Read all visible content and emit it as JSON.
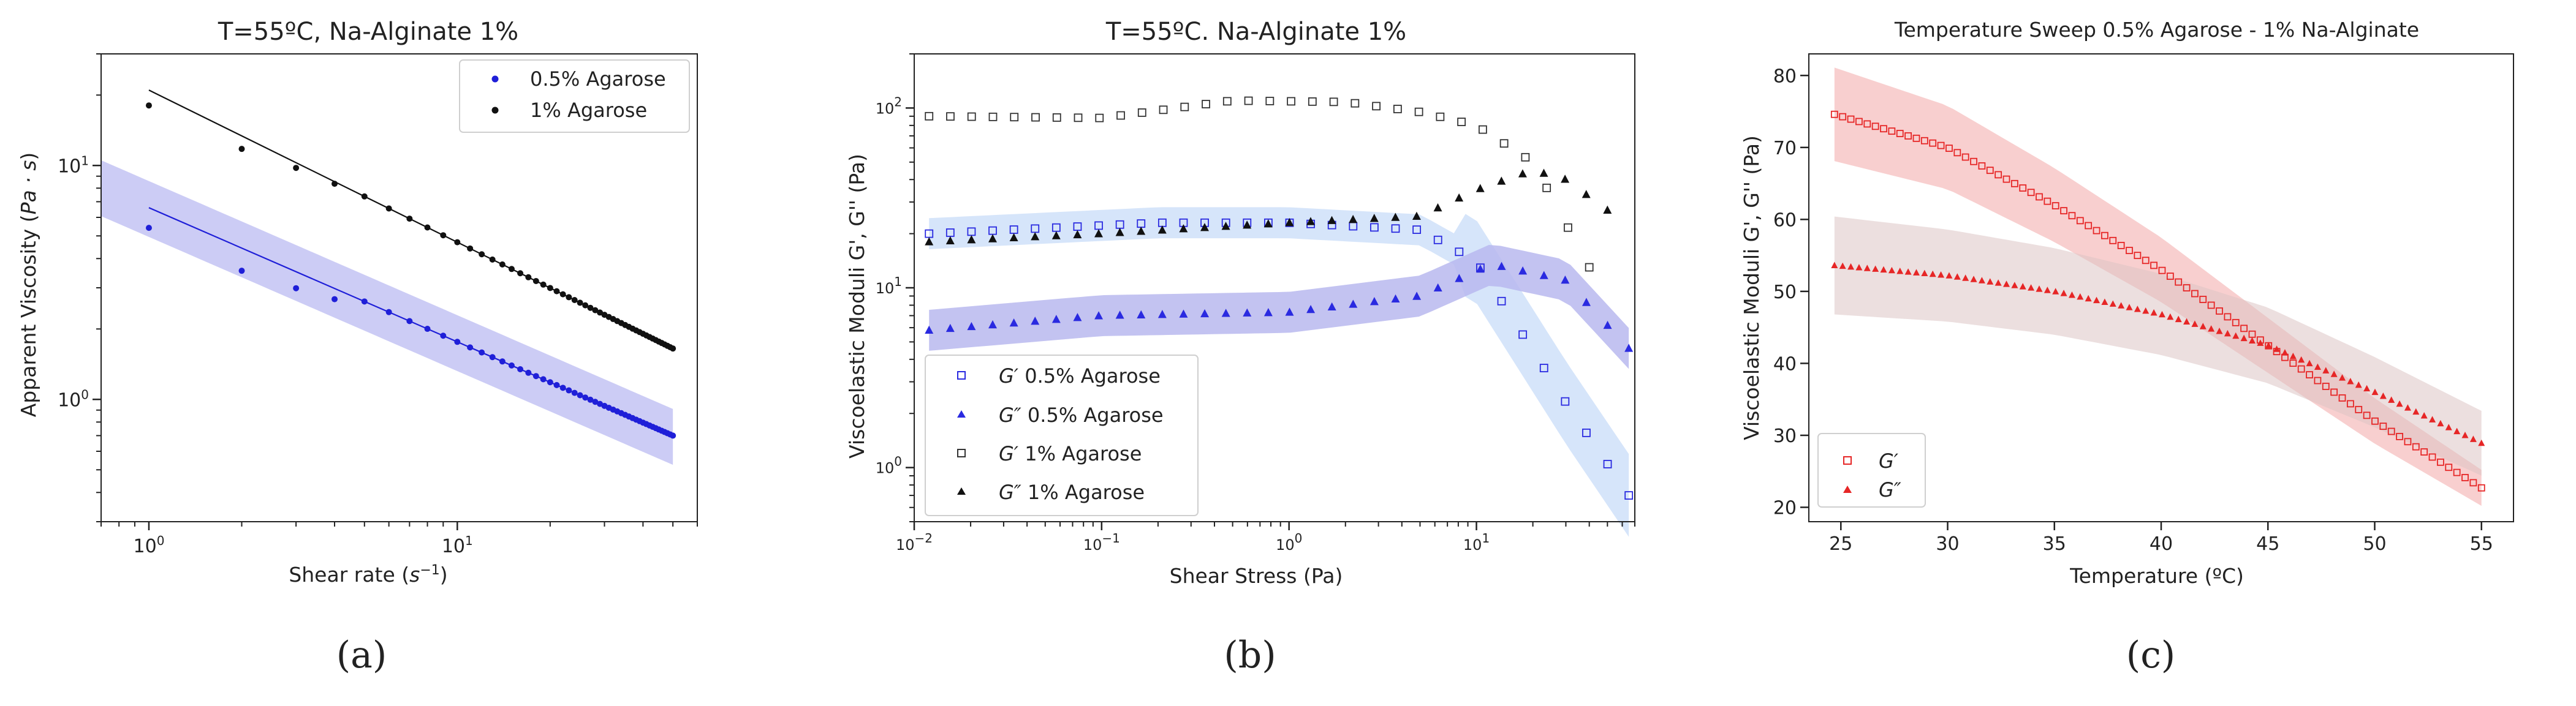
{
  "chart_data": [
    {
      "panel_label": "(a)",
      "type": "scatter",
      "scale": {
        "x": "log",
        "y": "log"
      },
      "title": "T=55ºC, Na-Alginate 1%",
      "xlabel_text": "Shear rate (",
      "xlabel_italic": "s",
      "xlabel_sup": "−1",
      "xlabel_close": ")",
      "ylabel_text": "Apparent Viscosity (",
      "ylabel_italic": "Pa · s",
      "ylabel_close": ")",
      "xlim": [
        0.7,
        60
      ],
      "ylim": [
        0.3,
        30
      ],
      "xticks": [
        {
          "v": 1,
          "b": "10",
          "e": "0"
        },
        {
          "v": 10,
          "b": "10",
          "e": "1"
        }
      ],
      "yticks": [
        {
          "v": 1,
          "b": "10",
          "e": "0"
        },
        {
          "v": 10,
          "b": "10",
          "e": "1"
        }
      ],
      "legend_position": "top-right",
      "series": [
        {
          "name": "0.5% Agarose",
          "color": "#1f1fd8",
          "marker": "dot",
          "fit": true,
          "band": true,
          "x0": 1,
          "y0": 6.6,
          "x1": 50,
          "y1": 0.7,
          "x_start": 1,
          "x_step": 1,
          "count": 50,
          "band_lower": 0.75,
          "band_upper": 1.3
        },
        {
          "name": "1% Agarose",
          "color": "#111111",
          "marker": "dot",
          "fit": true,
          "band": false,
          "x0": 1,
          "y0": 21,
          "x1": 50,
          "y1": 1.65,
          "x_start": 1,
          "x_step": 1,
          "count": 50
        }
      ]
    },
    {
      "panel_label": "(b)",
      "type": "scatter",
      "scale": {
        "x": "log",
        "y": "log"
      },
      "title": "T=55ºC. Na-Alginate 1%",
      "xlabel": "Shear Stress (Pa)",
      "ylabel": "Viscoelastic Moduli G', G'' (Pa)",
      "xlim": [
        0.01,
        70
      ],
      "ylim": [
        0.5,
        200
      ],
      "xticks": [
        {
          "v": 0.01,
          "b": "10",
          "e": "−2"
        },
        {
          "v": 0.1,
          "b": "10",
          "e": "−1"
        },
        {
          "v": 1,
          "b": "10",
          "e": "0"
        },
        {
          "v": 10,
          "b": "10",
          "e": "1"
        }
      ],
      "yticks": [
        {
          "v": 1,
          "b": "10",
          "e": "0"
        },
        {
          "v": 10,
          "b": "10",
          "e": "1"
        },
        {
          "v": 100,
          "b": "10",
          "e": "2"
        }
      ],
      "legend_position": "bottom-left",
      "series": [
        {
          "name": "0.5% Agarose",
          "symbol": "G′",
          "color": "#2a2ae0",
          "marker": "square-open",
          "band": true,
          "x_start": 0.012,
          "x_end": 65,
          "count": 34,
          "points": [
            [
              0.012,
              20
            ],
            [
              0.2,
              23
            ],
            [
              1,
              23
            ],
            [
              5,
              21
            ],
            [
              10,
              14
            ],
            [
              30,
              2.3
            ],
            [
              65,
              0.7
            ]
          ]
        },
        {
          "name": "0.5% Agarose",
          "symbol": "G″",
          "color": "#2a2ae0",
          "marker": "triangle",
          "band": true,
          "x_start": 0.012,
          "x_end": 65,
          "count": 34,
          "points": [
            [
              0.012,
              5.8
            ],
            [
              0.1,
              7
            ],
            [
              1,
              7.3
            ],
            [
              5,
              9
            ],
            [
              12,
              13.5
            ],
            [
              30,
              11
            ],
            [
              65,
              4.6
            ]
          ]
        },
        {
          "name": "1% Agarose",
          "symbol": "G′",
          "color": "#333333",
          "marker": "square-open",
          "band": false,
          "x_start": 0.012,
          "x_end": 40,
          "count": 32,
          "points": [
            [
              0.012,
              90
            ],
            [
              0.1,
              88
            ],
            [
              0.5,
              110
            ],
            [
              2,
              108
            ],
            [
              5,
              95
            ],
            [
              10,
              80
            ],
            [
              20,
              50
            ],
            [
              40,
              13
            ]
          ]
        },
        {
          "name": "1% Agarose",
          "symbol": "G″",
          "color": "#111111",
          "marker": "triangle",
          "band": false,
          "x_start": 0.012,
          "x_end": 50,
          "count": 33,
          "points": [
            [
              0.012,
              18
            ],
            [
              0.1,
              20
            ],
            [
              1,
              23
            ],
            [
              5,
              25
            ],
            [
              10,
              35
            ],
            [
              20,
              45
            ],
            [
              30,
              40
            ],
            [
              50,
              27
            ]
          ]
        }
      ]
    },
    {
      "panel_label": "(c)",
      "type": "scatter",
      "scale": {
        "x": "linear",
        "y": "linear"
      },
      "title": "Temperature Sweep 0.5% Agarose - 1% Na-Alginate",
      "xlabel": "Temperature (ºC)",
      "ylabel": "Viscoelastic Moduli G', G'' (Pa)",
      "xlim": [
        23.5,
        56.5
      ],
      "ylim": [
        18,
        83
      ],
      "xticks": [
        25,
        30,
        35,
        40,
        45,
        50,
        55
      ],
      "yticks": [
        20,
        30,
        40,
        50,
        60,
        70,
        80
      ],
      "legend_position": "bottom-left",
      "series": [
        {
          "name": "G′",
          "color": "#e62626",
          "marker": "square-open",
          "band": true,
          "band_color": "#f3a7a7",
          "points": [
            [
              24.7,
              74.6
            ],
            [
              30,
              70
            ],
            [
              35,
              62
            ],
            [
              40,
              53
            ],
            [
              45,
              42.5
            ],
            [
              50,
              32
            ],
            [
              55,
              22.7
            ]
          ],
          "count": 80,
          "band_half": [
            6.5,
            2.5
          ]
        },
        {
          "name": "G″",
          "color": "#e62626",
          "marker": "triangle",
          "band": true,
          "band_color": "#dcc4c4",
          "points": [
            [
              24.7,
              53.6
            ],
            [
              30,
              52.2
            ],
            [
              35,
              50
            ],
            [
              40,
              46.8
            ],
            [
              45,
              42.5
            ],
            [
              50,
              36
            ],
            [
              55,
              28.9
            ]
          ],
          "count": 80,
          "band_half": [
            6.8,
            4.5
          ]
        }
      ]
    }
  ]
}
